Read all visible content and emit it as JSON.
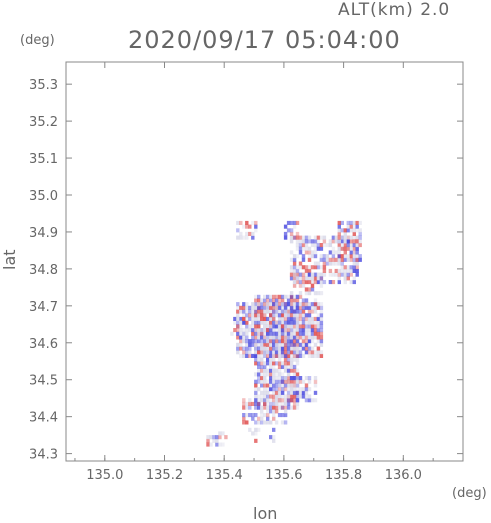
{
  "header": {
    "alt_label": "ALT(km) 2.0",
    "timestamp": "2020/09/17 05:04:00"
  },
  "axes": {
    "y_unit": "(deg)",
    "x_unit": "(deg)",
    "x_label": "lon",
    "y_label": "lat"
  },
  "chart_data": {
    "type": "heatmap",
    "xlabel": "lon",
    "ylabel": "lat",
    "xlim": [
      134.87,
      136.2
    ],
    "ylim": [
      34.28,
      35.36
    ],
    "x_ticks": [
      135.0,
      135.2,
      135.4,
      135.6,
      135.8,
      136.0
    ],
    "x_tick_labels": [
      "135.0",
      "135.2",
      "135.4",
      "135.6",
      "135.8",
      "136.0"
    ],
    "y_ticks": [
      34.3,
      34.4,
      34.5,
      34.6,
      34.7,
      34.8,
      34.9,
      35.0,
      35.1,
      35.2,
      35.3
    ],
    "y_tick_labels": [
      "34.3",
      "34.4",
      "34.5",
      "34.6",
      "34.7",
      "34.8",
      "34.9",
      "35.0",
      "35.1",
      "35.2",
      "35.3"
    ],
    "colors": {
      "positive": "#e05050",
      "negative": "#5050e0",
      "neutral": "#d8d8e8",
      "frame": "#888888"
    },
    "regions": [
      {
        "lon": [
          135.5,
          135.64
        ],
        "lat": [
          34.42,
          34.72
        ],
        "density": 0.9
      },
      {
        "lon": [
          135.44,
          135.72
        ],
        "lat": [
          34.56,
          34.7
        ],
        "density": 0.85
      },
      {
        "lon": [
          135.46,
          135.6
        ],
        "lat": [
          34.38,
          34.44
        ],
        "density": 0.6
      },
      {
        "lon": [
          135.58,
          135.7
        ],
        "lat": [
          34.44,
          34.5
        ],
        "density": 0.5
      },
      {
        "lon": [
          135.62,
          135.84
        ],
        "lat": [
          34.76,
          34.88
        ],
        "density": 0.65
      },
      {
        "lon": [
          135.78,
          135.85
        ],
        "lat": [
          34.82,
          34.92
        ],
        "density": 0.75
      },
      {
        "lon": [
          135.62,
          135.72
        ],
        "lat": [
          34.7,
          34.78
        ],
        "density": 0.5
      },
      {
        "lon": [
          135.44,
          135.5
        ],
        "lat": [
          34.88,
          34.92
        ],
        "density": 0.55
      },
      {
        "lon": [
          135.6,
          135.64
        ],
        "lat": [
          34.88,
          34.92
        ],
        "density": 0.5
      },
      {
        "lon": [
          135.34,
          135.4
        ],
        "lat": [
          34.32,
          34.35
        ],
        "density": 0.6
      },
      {
        "lon": [
          135.48,
          135.56
        ],
        "lat": [
          34.33,
          34.36
        ],
        "density": 0.4
      },
      {
        "lon": [
          135.42,
          135.46
        ],
        "lat": [
          34.62,
          34.66
        ],
        "density": 0.6
      }
    ]
  }
}
